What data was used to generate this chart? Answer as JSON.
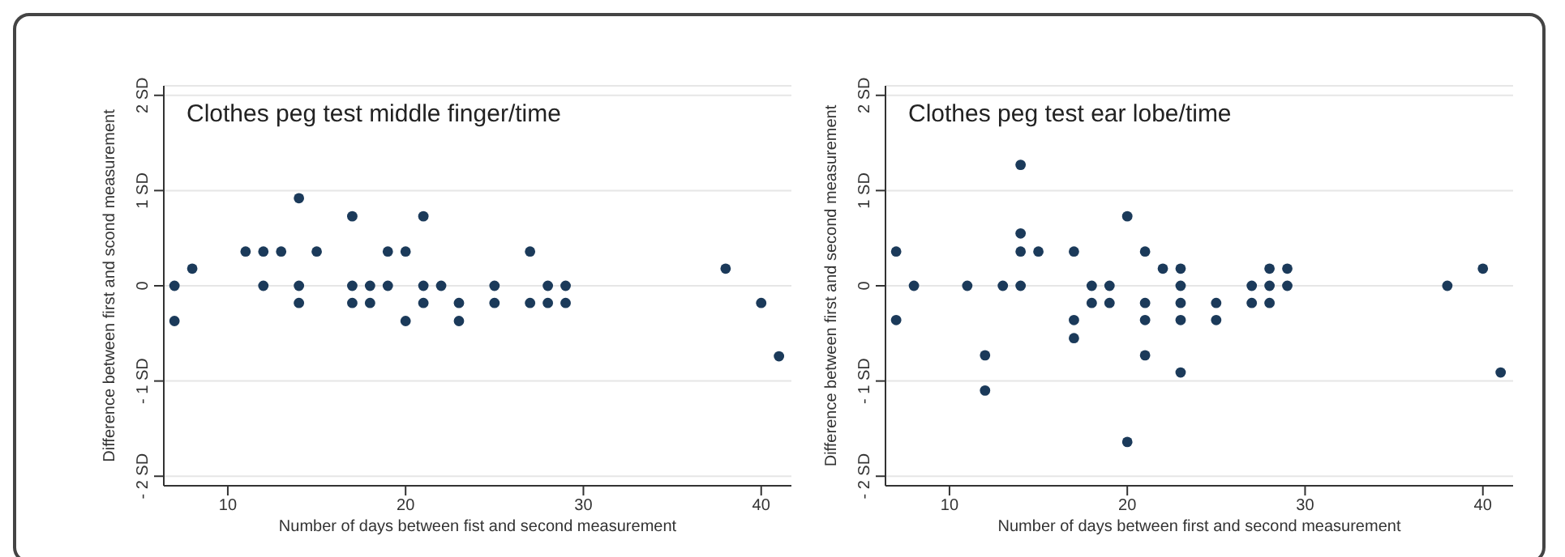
{
  "chart_data": [
    {
      "type": "scatter",
      "title": "Clothes peg test middle finger/time",
      "xlabel": "Number of days between fist and second measurement",
      "ylabel": "Difference between first and scond measurement",
      "xlim": [
        6.4,
        41.7
      ],
      "xticks": [
        10,
        20,
        30,
        40
      ],
      "ylim": [
        -2.1,
        2.1
      ],
      "yticks": [
        {
          "value": -2,
          "label": "- 2 SD"
        },
        {
          "value": -1,
          "label": "- 1 SD"
        },
        {
          "value": 0,
          "label": "0"
        },
        {
          "value": 1,
          "label": "1 SD"
        },
        {
          "value": 2,
          "label": "2 SD"
        }
      ],
      "grid": "y",
      "marker": "circle",
      "series": [
        {
          "color": "#1b3a5a",
          "x": [
            7,
            7,
            8,
            11,
            12,
            12,
            13,
            14,
            14,
            14,
            15,
            17,
            17,
            17,
            18,
            18,
            19,
            19,
            20,
            20,
            21,
            21,
            21,
            22,
            23,
            23,
            25,
            25,
            27,
            27,
            28,
            28,
            29,
            29,
            38,
            40,
            41
          ],
          "values": [
            0,
            -0.37,
            0.18,
            0.36,
            0.36,
            0,
            0.36,
            0.92,
            0,
            -0.18,
            0.36,
            0.73,
            0,
            -0.18,
            0,
            -0.18,
            0.36,
            0,
            0.36,
            -0.37,
            0.73,
            0,
            -0.18,
            0,
            -0.18,
            -0.37,
            0,
            -0.18,
            0.36,
            -0.18,
            0,
            -0.18,
            0,
            -0.18,
            0.18,
            -0.18,
            -0.74
          ]
        }
      ]
    },
    {
      "type": "scatter",
      "title": "Clothes peg test ear lobe/time",
      "xlabel": "Number of days between first and second measurement",
      "ylabel": "Difference between first and second measurement",
      "xlim": [
        6.4,
        41.7
      ],
      "xticks": [
        10,
        20,
        30,
        40
      ],
      "ylim": [
        -2.1,
        2.1
      ],
      "yticks": [
        {
          "value": -2,
          "label": "- 2 SD"
        },
        {
          "value": -1,
          "label": "- 1 SD"
        },
        {
          "value": 0,
          "label": "0"
        },
        {
          "value": 1,
          "label": "1 SD"
        },
        {
          "value": 2,
          "label": "2 SD"
        }
      ],
      "grid": "y",
      "marker": "circle",
      "series": [
        {
          "color": "#1b3a5a",
          "x": [
            7,
            7,
            8,
            11,
            12,
            12,
            13,
            14,
            14,
            14,
            14,
            15,
            17,
            17,
            17,
            18,
            18,
            19,
            19,
            20,
            20,
            21,
            21,
            21,
            21,
            22,
            23,
            23,
            23,
            23,
            23,
            25,
            25,
            27,
            27,
            28,
            28,
            28,
            29,
            29,
            38,
            40,
            41
          ],
          "values": [
            0.36,
            -0.36,
            0,
            0,
            -0.73,
            -1.1,
            0,
            1.27,
            0.55,
            0.36,
            0,
            0.36,
            0.36,
            -0.36,
            -0.55,
            0,
            -0.18,
            0,
            -0.18,
            0.73,
            -1.64,
            0.36,
            -0.18,
            -0.36,
            -0.73,
            0.18,
            0.18,
            0,
            -0.18,
            -0.36,
            -0.91,
            -0.18,
            -0.36,
            0,
            -0.18,
            0.18,
            0,
            -0.18,
            0.18,
            0,
            0,
            0.18,
            -0.91
          ]
        }
      ]
    }
  ]
}
